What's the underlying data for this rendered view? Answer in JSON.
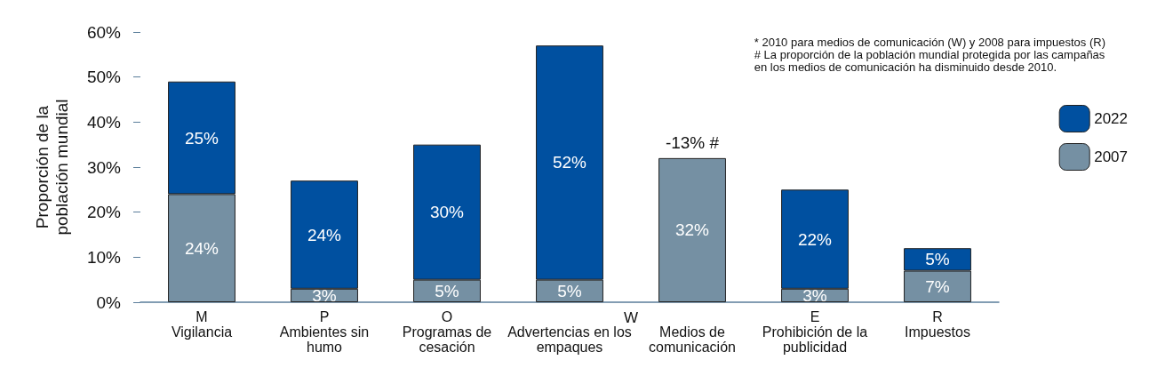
{
  "chart_data": {
    "type": "bar",
    "stacked": true,
    "ylabel": "Proporción de la\npoblación mundial",
    "categories": [
      "M\nVigilancia",
      "P\nAmbientes sin\nhumo",
      "O\nProgramas de\ncesación",
      "Advertencias en los\nempaques",
      "Medios de\ncomunicación",
      "E\nProhibición de la\npublicidad",
      "R\nImpuestos"
    ],
    "series": [
      {
        "name": "2007",
        "color": "#7590a3",
        "values": [
          24,
          3,
          5,
          5,
          32,
          3,
          7
        ],
        "value_labels": [
          "24%",
          "3%",
          "5%",
          "5%",
          "32%",
          "3%",
          "7%"
        ]
      },
      {
        "name": "2022",
        "color": "#0050a0",
        "values": [
          25,
          24,
          30,
          52,
          null,
          22,
          5
        ],
        "value_labels": [
          "25%",
          "24%",
          "30%",
          "52%",
          null,
          "22%",
          "5%"
        ]
      }
    ],
    "ylim": [
      0,
      60
    ],
    "yticks": [
      {
        "value": 0,
        "label": "0%"
      },
      {
        "value": 10,
        "label": "10%"
      },
      {
        "value": 20,
        "label": "20%"
      },
      {
        "value": 30,
        "label": "30%"
      },
      {
        "value": 40,
        "label": "40%"
      },
      {
        "value": 50,
        "label": "50%"
      },
      {
        "value": 60,
        "label": "60%"
      }
    ],
    "grid": false,
    "legend": "right",
    "annotations": [
      "* 2010 para medios de comunicación (W) y 2008 para impuestos (R)",
      "# La proporción de la población mundial protegida por las campañas\nen los medios de comunicación ha disminuido desde 2010.",
      {
        "text": "-13% #",
        "x": "Medios de\ncomunicación",
        "y": 32
      },
      "W"
    ]
  }
}
